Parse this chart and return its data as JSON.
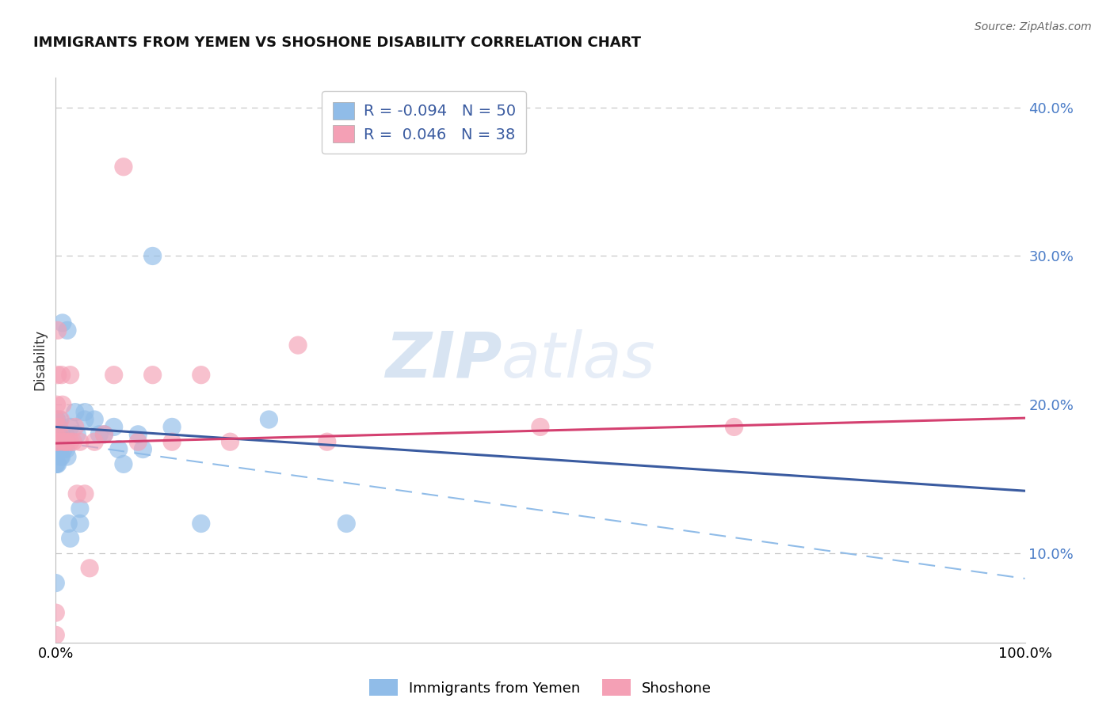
{
  "title": "IMMIGRANTS FROM YEMEN VS SHOSHONE DISABILITY CORRELATION CHART",
  "source": "Source: ZipAtlas.com",
  "ylabel": "Disability",
  "xlim": [
    0.0,
    1.0
  ],
  "ylim": [
    0.04,
    0.42
  ],
  "yticks": [
    0.1,
    0.2,
    0.3,
    0.4
  ],
  "ytick_labels": [
    "10.0%",
    "20.0%",
    "30.0%",
    "40.0%"
  ],
  "xticks": [
    0.0,
    1.0
  ],
  "xtick_labels": [
    "0.0%",
    "100.0%"
  ],
  "legend_labels": [
    "Immigrants from Yemen",
    "Shoshone"
  ],
  "R_blue": -0.094,
  "N_blue": 50,
  "R_pink": 0.046,
  "N_pink": 38,
  "color_blue": "#90bce8",
  "color_pink": "#f4a0b5",
  "line_blue": "#3a5ba0",
  "line_pink": "#d44070",
  "watermark_zip": "ZIP",
  "watermark_atlas": "atlas",
  "blue_x": [
    0.0,
    0.0,
    0.0,
    0.0,
    0.0,
    0.001,
    0.001,
    0.001,
    0.001,
    0.002,
    0.002,
    0.003,
    0.003,
    0.003,
    0.004,
    0.004,
    0.005,
    0.005,
    0.006,
    0.006,
    0.007,
    0.008,
    0.009,
    0.01,
    0.01,
    0.011,
    0.012,
    0.012,
    0.013,
    0.015,
    0.015,
    0.02,
    0.022,
    0.025,
    0.025,
    0.03,
    0.03,
    0.04,
    0.045,
    0.05,
    0.06,
    0.065,
    0.07,
    0.085,
    0.09,
    0.1,
    0.12,
    0.15,
    0.22,
    0.3
  ],
  "blue_y": [
    0.08,
    0.17,
    0.18,
    0.19,
    0.16,
    0.18,
    0.16,
    0.17,
    0.19,
    0.16,
    0.18,
    0.17,
    0.18,
    0.185,
    0.17,
    0.19,
    0.175,
    0.165,
    0.165,
    0.18,
    0.255,
    0.17,
    0.175,
    0.18,
    0.175,
    0.17,
    0.165,
    0.25,
    0.12,
    0.185,
    0.11,
    0.195,
    0.18,
    0.13,
    0.12,
    0.195,
    0.19,
    0.19,
    0.18,
    0.18,
    0.185,
    0.17,
    0.16,
    0.18,
    0.17,
    0.3,
    0.185,
    0.12,
    0.19,
    0.12
  ],
  "pink_x": [
    0.0,
    0.0,
    0.0,
    0.0,
    0.001,
    0.001,
    0.002,
    0.002,
    0.003,
    0.003,
    0.004,
    0.005,
    0.006,
    0.007,
    0.008,
    0.01,
    0.012,
    0.015,
    0.015,
    0.018,
    0.02,
    0.022,
    0.025,
    0.03,
    0.035,
    0.04,
    0.05,
    0.06,
    0.07,
    0.085,
    0.1,
    0.12,
    0.15,
    0.18,
    0.25,
    0.28,
    0.5,
    0.7
  ],
  "pink_y": [
    0.045,
    0.06,
    0.18,
    0.19,
    0.175,
    0.2,
    0.25,
    0.22,
    0.185,
    0.175,
    0.18,
    0.19,
    0.22,
    0.2,
    0.175,
    0.175,
    0.175,
    0.22,
    0.175,
    0.175,
    0.185,
    0.14,
    0.175,
    0.14,
    0.09,
    0.175,
    0.18,
    0.22,
    0.36,
    0.175,
    0.22,
    0.175,
    0.22,
    0.175,
    0.24,
    0.175,
    0.185,
    0.185
  ],
  "dash_line_y_start": 0.175,
  "dash_line_y_end": 0.083,
  "blue_line_y_start": 0.185,
  "blue_line_y_end": 0.142,
  "pink_line_y_start": 0.174,
  "pink_line_y_end": 0.191
}
